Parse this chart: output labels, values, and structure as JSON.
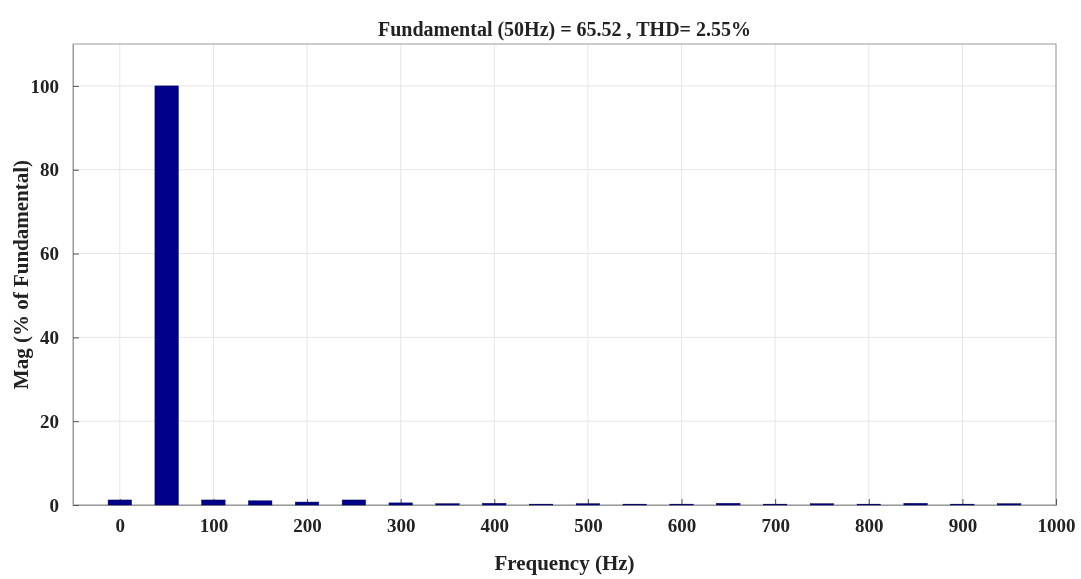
{
  "chart_data": {
    "type": "bar",
    "title": "Fundamental (50Hz) = 65.52 , THD= 2.55%",
    "xlabel": "Frequency (Hz)",
    "ylabel": "Mag (% of Fundamental)",
    "x": [
      0,
      50,
      100,
      150,
      200,
      250,
      300,
      350,
      400,
      450,
      500,
      550,
      600,
      650,
      700,
      750,
      800,
      850,
      900,
      950
    ],
    "values": [
      1.2,
      100,
      1.2,
      1.0,
      0.7,
      1.2,
      0.5,
      0.3,
      0.4,
      0.2,
      0.3,
      0.2,
      0.2,
      0.4,
      0.2,
      0.3,
      0.2,
      0.4,
      0.2,
      0.3
    ],
    "color": "#00008b",
    "xlim": [
      -50,
      1000
    ],
    "xticks": [
      0,
      100,
      200,
      300,
      400,
      500,
      600,
      700,
      800,
      900,
      1000
    ],
    "ylim": [
      0,
      110
    ],
    "yticks": [
      0,
      20,
      40,
      60,
      80,
      100
    ],
    "grid": true
  }
}
